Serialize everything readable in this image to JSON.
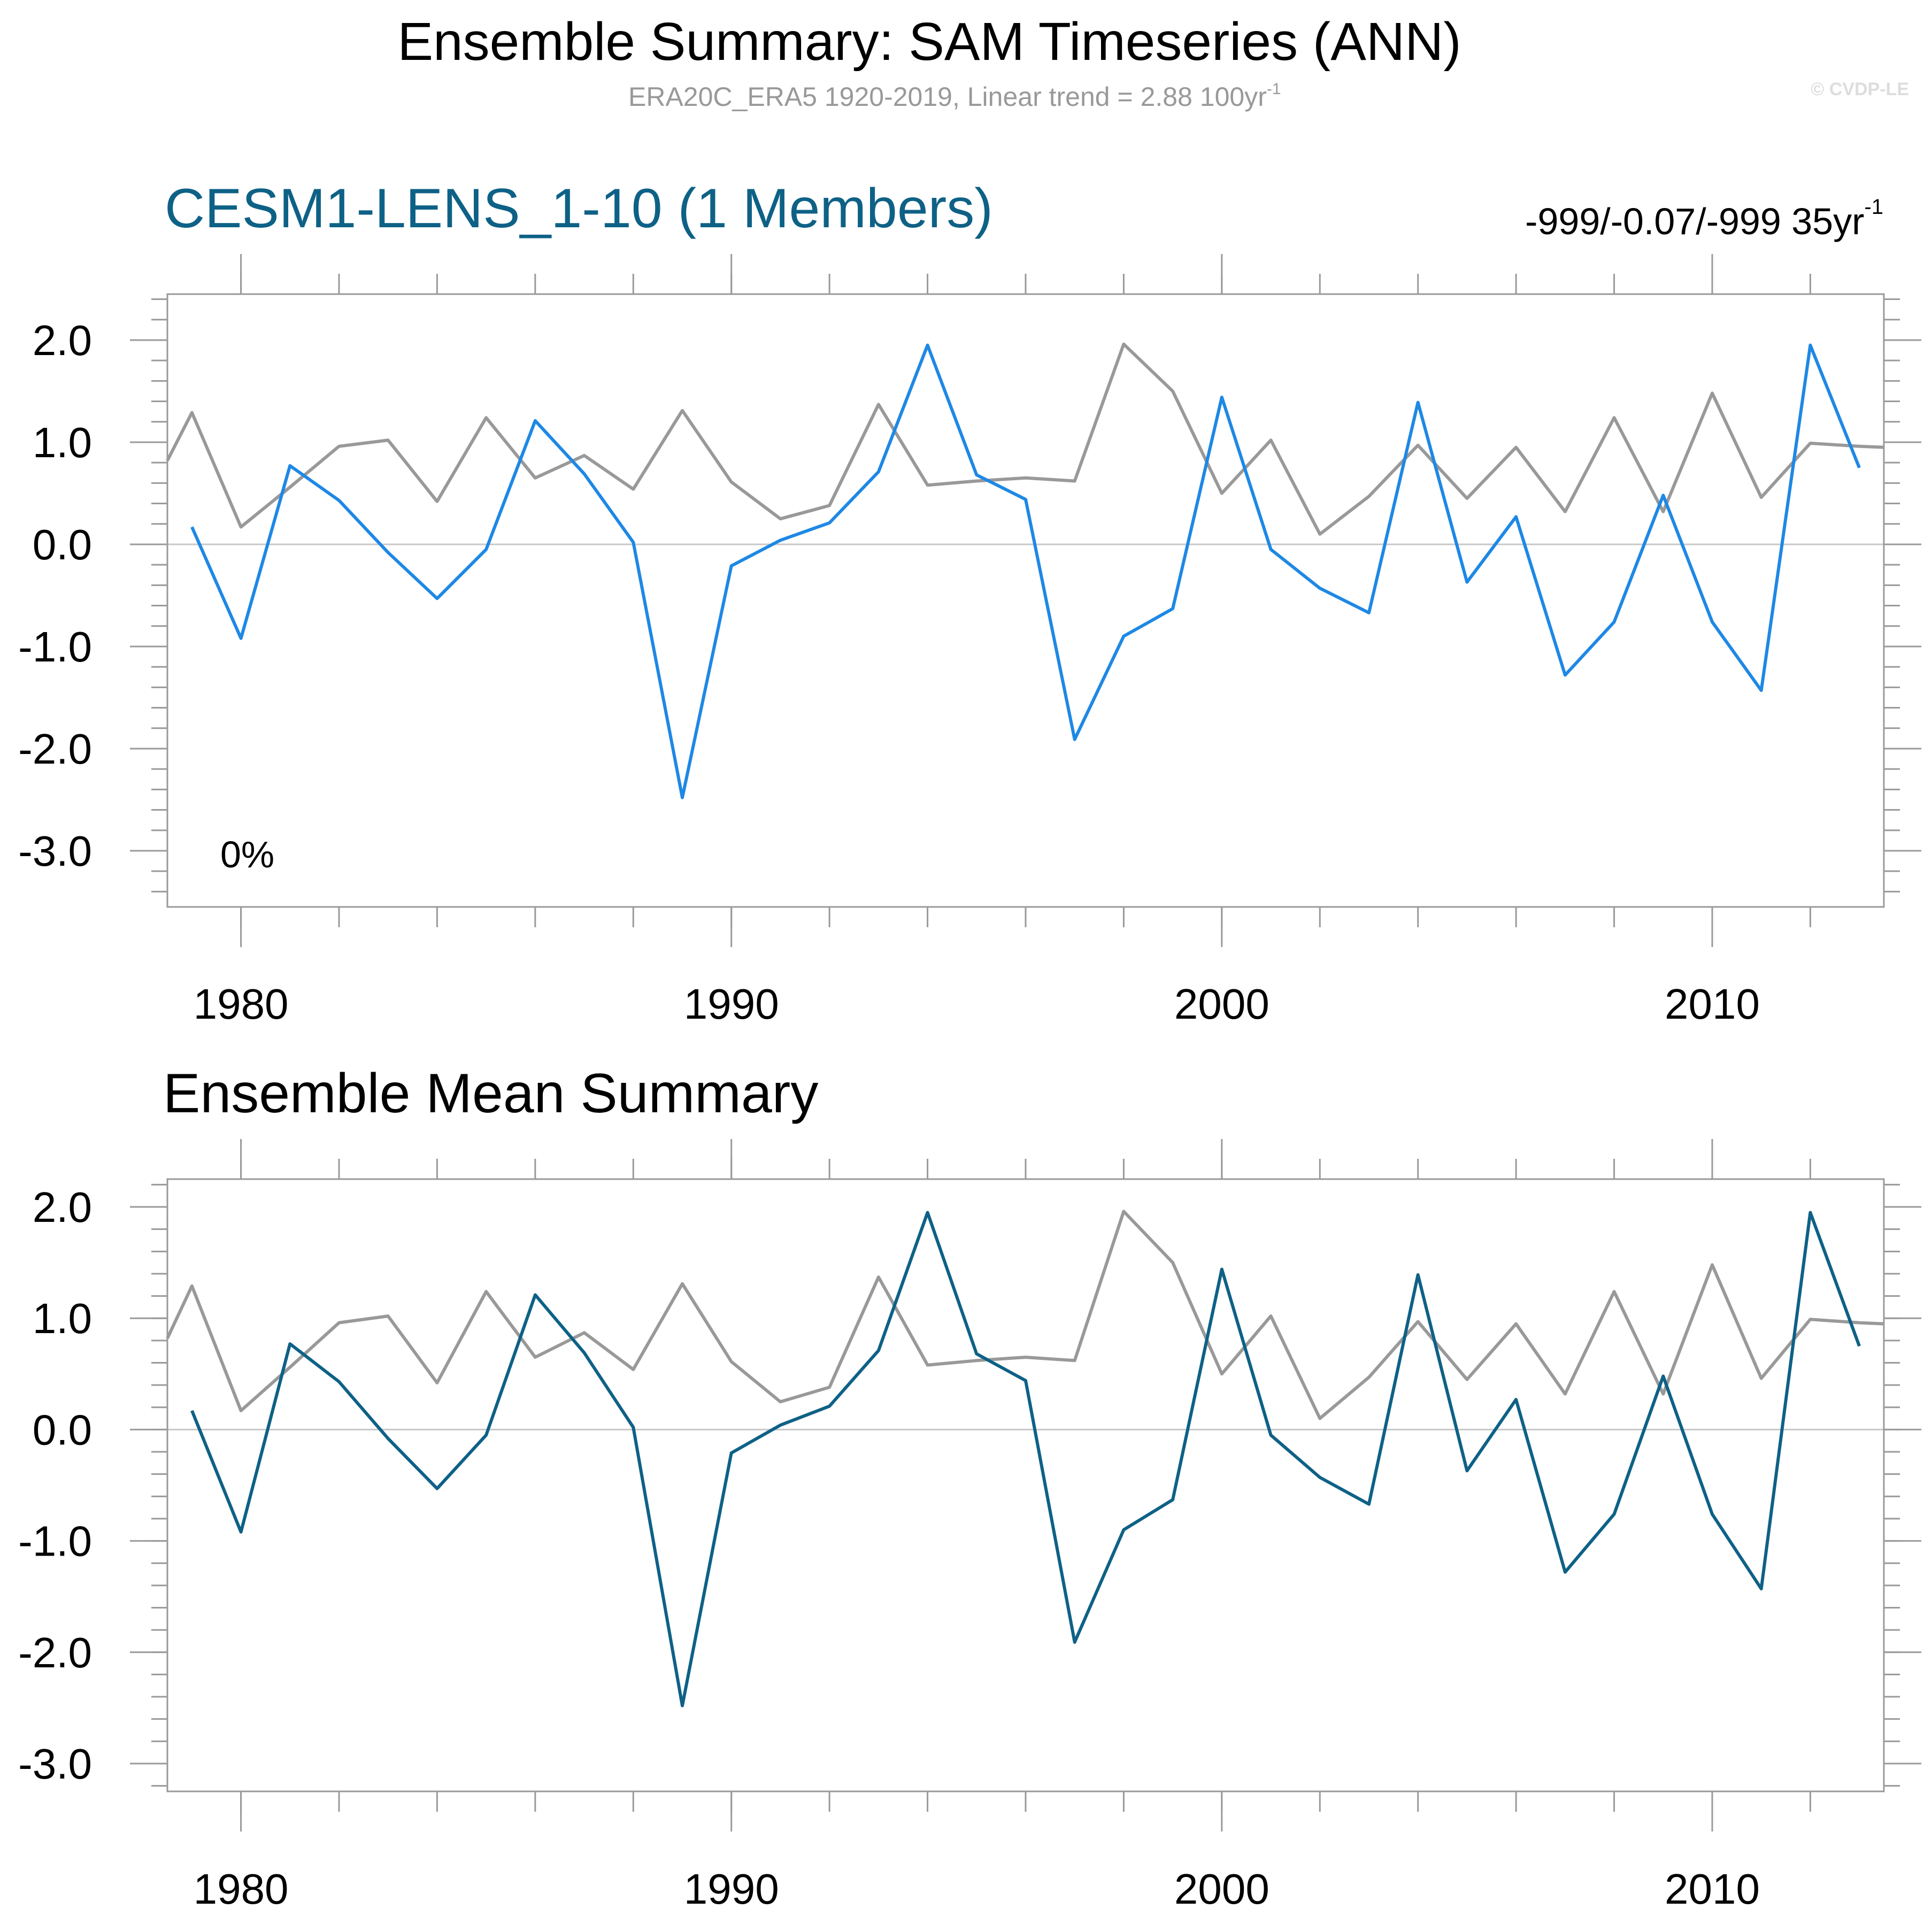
{
  "figure": {
    "title": "Ensemble Summary: SAM Timeseries (ANN)",
    "subtitle": "ERA20C_ERA5 1920-2019, Linear trend = 2.88 100yr",
    "subtitle_sup": "-1",
    "watermark": "© CVDP-LE"
  },
  "panels": [
    {
      "title": "CESM1-LENS_1-10 (1 Members)",
      "stat": "-999/-0.07/-999 35yr",
      "stat_sup": "-1",
      "percent_label": "0%"
    },
    {
      "title": "Ensemble Mean Summary"
    }
  ],
  "colors": {
    "observed": "#999999",
    "member": "#1e88e5",
    "ensemble_mean": "#0e6186",
    "title_blue": "#0e6186"
  },
  "chart_data": [
    {
      "type": "line",
      "x_ticks": [
        1980,
        1990,
        2000,
        2010
      ],
      "x_tick_labels": [
        "1980",
        "1990",
        "2000",
        "2010"
      ],
      "y_ticks": [
        2.0,
        1.0,
        0.0,
        -1.0,
        -2.0,
        -3.0
      ],
      "y_tick_labels": [
        "2.0",
        "1.0",
        "0.0",
        "-1.0",
        "-2.0",
        "-3.0"
      ],
      "xlim": [
        1978.5,
        2013.5
      ],
      "ylim": [
        -3.55,
        2.45
      ],
      "series": [
        {
          "role": "observed",
          "x": [
            1978.5,
            1979,
            1980,
            1981,
            1982,
            1983,
            1984,
            1985,
            1986,
            1987,
            1988,
            1989,
            1990,
            1991,
            1992,
            1993,
            1994,
            1995,
            1996,
            1997,
            1998,
            1999,
            2000,
            2001,
            2002,
            2003,
            2004,
            2005,
            2006,
            2007,
            2008,
            2009,
            2010,
            2011,
            2012,
            2013,
            2013.5
          ],
          "values": [
            0.82,
            1.29,
            0.17,
            0.56,
            0.96,
            1.02,
            0.42,
            1.24,
            0.65,
            0.87,
            0.54,
            1.31,
            0.61,
            0.25,
            0.38,
            1.37,
            0.58,
            0.62,
            0.65,
            0.62,
            1.96,
            1.5,
            0.5,
            1.02,
            0.1,
            0.47,
            0.97,
            0.45,
            0.95,
            0.32,
            1.24,
            0.32,
            1.48,
            0.46,
            0.99,
            0.96,
            0.95
          ]
        },
        {
          "role": "member",
          "x": [
            1979,
            1980,
            1981,
            1982,
            1983,
            1984,
            1985,
            1986,
            1987,
            1988,
            1989,
            1990,
            1991,
            1992,
            1993,
            1994,
            1995,
            1996,
            1997,
            1998,
            1999,
            2000,
            2001,
            2002,
            2003,
            2004,
            2005,
            2006,
            2007,
            2008,
            2009,
            2010,
            2011,
            2012,
            2013
          ],
          "values": [
            0.17,
            -0.92,
            0.77,
            0.43,
            -0.08,
            -0.53,
            -0.05,
            1.21,
            0.69,
            0.02,
            -2.48,
            -0.21,
            0.04,
            0.21,
            0.71,
            1.95,
            0.68,
            0.44,
            -1.91,
            -0.9,
            -0.63,
            1.44,
            -0.05,
            -0.43,
            -0.67,
            1.39,
            -0.37,
            0.27,
            -1.28,
            -0.76,
            0.48,
            -0.76,
            -1.43,
            1.95,
            0.75
          ]
        }
      ]
    },
    {
      "type": "line",
      "x_ticks": [
        1980,
        1990,
        2000,
        2010
      ],
      "x_tick_labels": [
        "1980",
        "1990",
        "2000",
        "2010"
      ],
      "y_ticks": [
        2.0,
        1.0,
        0.0,
        -1.0,
        -2.0,
        -3.0
      ],
      "y_tick_labels": [
        "2.0",
        "1.0",
        "0.0",
        "-1.0",
        "-2.0",
        "-3.0"
      ],
      "xlim": [
        1978.5,
        2013.5
      ],
      "ylim": [
        -3.25,
        2.25
      ],
      "series": [
        {
          "role": "observed",
          "x": [
            1978.5,
            1979,
            1980,
            1981,
            1982,
            1983,
            1984,
            1985,
            1986,
            1987,
            1988,
            1989,
            1990,
            1991,
            1992,
            1993,
            1994,
            1995,
            1996,
            1997,
            1998,
            1999,
            2000,
            2001,
            2002,
            2003,
            2004,
            2005,
            2006,
            2007,
            2008,
            2009,
            2010,
            2011,
            2012,
            2013,
            2013.5
          ],
          "values": [
            0.82,
            1.29,
            0.17,
            0.56,
            0.96,
            1.02,
            0.42,
            1.24,
            0.65,
            0.87,
            0.54,
            1.31,
            0.61,
            0.25,
            0.38,
            1.37,
            0.58,
            0.62,
            0.65,
            0.62,
            1.96,
            1.5,
            0.5,
            1.02,
            0.1,
            0.47,
            0.97,
            0.45,
            0.95,
            0.32,
            1.24,
            0.32,
            1.48,
            0.46,
            0.99,
            0.96,
            0.95
          ]
        },
        {
          "role": "ensemble_mean",
          "x": [
            1979,
            1980,
            1981,
            1982,
            1983,
            1984,
            1985,
            1986,
            1987,
            1988,
            1989,
            1990,
            1991,
            1992,
            1993,
            1994,
            1995,
            1996,
            1997,
            1998,
            1999,
            2000,
            2001,
            2002,
            2003,
            2004,
            2005,
            2006,
            2007,
            2008,
            2009,
            2010,
            2011,
            2012,
            2013
          ],
          "values": [
            0.17,
            -0.92,
            0.77,
            0.43,
            -0.08,
            -0.53,
            -0.05,
            1.21,
            0.69,
            0.02,
            -2.48,
            -0.21,
            0.04,
            0.21,
            0.71,
            1.95,
            0.68,
            0.44,
            -1.91,
            -0.9,
            -0.63,
            1.44,
            -0.05,
            -0.43,
            -0.67,
            1.39,
            -0.37,
            0.27,
            -1.28,
            -0.76,
            0.48,
            -0.76,
            -1.43,
            1.95,
            0.75
          ]
        }
      ]
    }
  ]
}
